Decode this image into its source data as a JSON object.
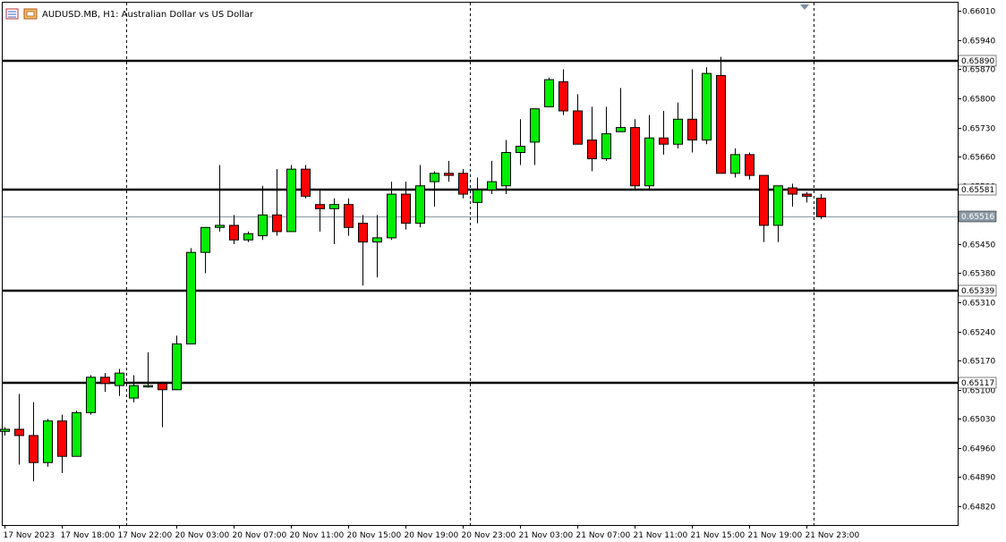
{
  "window": {
    "symbol": "AUDUSD.MB",
    "timeframe": "H1",
    "description": "Australian Dollar vs US Dollar",
    "title_text": "AUDUSD.MB, H1:  Australian Dollar vs US Dollar"
  },
  "colors": {
    "bull": "#00ee00",
    "bear": "#ff0000",
    "wick": "#000000",
    "level_line": "#000000",
    "bid_line": "#8898a8",
    "bid_tag_bg": "#8c9aa6",
    "grid_vline": "#000000",
    "background": "#ffffff"
  },
  "chart_data": {
    "type": "candlestick",
    "ylim": [
      0.64775,
      0.6603
    ],
    "y_ticks": [
      "0.66010",
      "0.65940",
      "0.65870",
      "0.65800",
      "0.65730",
      "0.65660",
      "0.65590",
      "0.65520",
      "0.65450",
      "0.65380",
      "0.65310",
      "0.65240",
      "0.65170",
      "0.65100",
      "0.65030",
      "0.64960",
      "0.64890",
      "0.64820"
    ],
    "x_labels": [
      {
        "index": 0,
        "text": "17 Nov 2023"
      },
      {
        "index": 4,
        "text": "17 Nov 18:00"
      },
      {
        "index": 8,
        "text": "17 Nov 22:00"
      },
      {
        "index": 12,
        "text": "20 Nov 03:00"
      },
      {
        "index": 16,
        "text": "20 Nov 07:00"
      },
      {
        "index": 20,
        "text": "20 Nov 11:00"
      },
      {
        "index": 24,
        "text": "20 Nov 15:00"
      },
      {
        "index": 28,
        "text": "20 Nov 19:00"
      },
      {
        "index": 32,
        "text": "20 Nov 23:00"
      },
      {
        "index": 36,
        "text": "21 Nov 03:00"
      },
      {
        "index": 40,
        "text": "21 Nov 07:00"
      },
      {
        "index": 44,
        "text": "21 Nov 11:00"
      },
      {
        "index": 48,
        "text": "21 Nov 15:00"
      },
      {
        "index": 52,
        "text": "21 Nov 19:00"
      },
      {
        "index": 56,
        "text": "21 Nov 23:00"
      }
    ],
    "period_separators": [
      8.5,
      32.5,
      56.5
    ],
    "horizontal_levels": [
      {
        "price": 0.6589,
        "label": "0.65890"
      },
      {
        "price": 0.65581,
        "label": "0.65581"
      },
      {
        "price": 0.65339,
        "label": "0.65339"
      },
      {
        "price": 0.65117,
        "label": "0.65117"
      }
    ],
    "bid": {
      "price": 0.65516,
      "label": "0.65516"
    },
    "candles": [
      {
        "o": 0.65,
        "h": 0.6501,
        "l": 0.6499,
        "c": 0.65005
      },
      {
        "o": 0.65005,
        "h": 0.6509,
        "l": 0.6492,
        "c": 0.6499
      },
      {
        "o": 0.6499,
        "h": 0.6507,
        "l": 0.6488,
        "c": 0.64925
      },
      {
        "o": 0.64925,
        "h": 0.6503,
        "l": 0.64915,
        "c": 0.65025
      },
      {
        "o": 0.65025,
        "h": 0.6504,
        "l": 0.649,
        "c": 0.6494
      },
      {
        "o": 0.6494,
        "h": 0.6505,
        "l": 0.6494,
        "c": 0.65045
      },
      {
        "o": 0.65045,
        "h": 0.65135,
        "l": 0.6504,
        "c": 0.6513
      },
      {
        "o": 0.6513,
        "h": 0.6514,
        "l": 0.65095,
        "c": 0.65115
      },
      {
        "o": 0.6511,
        "h": 0.6515,
        "l": 0.65085,
        "c": 0.6514
      },
      {
        "o": 0.6508,
        "h": 0.65135,
        "l": 0.6507,
        "c": 0.6511
      },
      {
        "o": 0.65108,
        "h": 0.6519,
        "l": 0.65105,
        "c": 0.6511
      },
      {
        "o": 0.65115,
        "h": 0.6512,
        "l": 0.6501,
        "c": 0.651
      },
      {
        "o": 0.651,
        "h": 0.6523,
        "l": 0.651,
        "c": 0.6521
      },
      {
        "o": 0.6521,
        "h": 0.6544,
        "l": 0.6521,
        "c": 0.6543
      },
      {
        "o": 0.6543,
        "h": 0.6549,
        "l": 0.6538,
        "c": 0.6549
      },
      {
        "o": 0.6549,
        "h": 0.6564,
        "l": 0.6548,
        "c": 0.65495
      },
      {
        "o": 0.65495,
        "h": 0.6552,
        "l": 0.6545,
        "c": 0.6546
      },
      {
        "o": 0.6546,
        "h": 0.6548,
        "l": 0.65455,
        "c": 0.65475
      },
      {
        "o": 0.6547,
        "h": 0.6559,
        "l": 0.6546,
        "c": 0.6552
      },
      {
        "o": 0.6552,
        "h": 0.6563,
        "l": 0.6547,
        "c": 0.6548
      },
      {
        "o": 0.6548,
        "h": 0.6564,
        "l": 0.6548,
        "c": 0.6563
      },
      {
        "o": 0.6563,
        "h": 0.6564,
        "l": 0.6556,
        "c": 0.65565
      },
      {
        "o": 0.65545,
        "h": 0.6558,
        "l": 0.6548,
        "c": 0.65535
      },
      {
        "o": 0.65535,
        "h": 0.6556,
        "l": 0.6545,
        "c": 0.65545
      },
      {
        "o": 0.65545,
        "h": 0.6556,
        "l": 0.6547,
        "c": 0.6549
      },
      {
        "o": 0.655,
        "h": 0.6552,
        "l": 0.6535,
        "c": 0.65455
      },
      {
        "o": 0.65455,
        "h": 0.6552,
        "l": 0.6537,
        "c": 0.65465
      },
      {
        "o": 0.65465,
        "h": 0.656,
        "l": 0.6546,
        "c": 0.6557
      },
      {
        "o": 0.6557,
        "h": 0.656,
        "l": 0.65485,
        "c": 0.655
      },
      {
        "o": 0.655,
        "h": 0.6564,
        "l": 0.6549,
        "c": 0.6559
      },
      {
        "o": 0.656,
        "h": 0.65625,
        "l": 0.6554,
        "c": 0.6562
      },
      {
        "o": 0.6562,
        "h": 0.6565,
        "l": 0.656,
        "c": 0.65615
      },
      {
        "o": 0.6562,
        "h": 0.6563,
        "l": 0.6556,
        "c": 0.6557
      },
      {
        "o": 0.6555,
        "h": 0.6561,
        "l": 0.655,
        "c": 0.6558
      },
      {
        "o": 0.6558,
        "h": 0.6565,
        "l": 0.6557,
        "c": 0.656
      },
      {
        "o": 0.6559,
        "h": 0.657,
        "l": 0.6557,
        "c": 0.6567
      },
      {
        "o": 0.6567,
        "h": 0.6575,
        "l": 0.6564,
        "c": 0.65685
      },
      {
        "o": 0.65695,
        "h": 0.65775,
        "l": 0.6564,
        "c": 0.65775
      },
      {
        "o": 0.6578,
        "h": 0.6585,
        "l": 0.6578,
        "c": 0.65845
      },
      {
        "o": 0.6584,
        "h": 0.6587,
        "l": 0.6576,
        "c": 0.6577
      },
      {
        "o": 0.6577,
        "h": 0.6581,
        "l": 0.6569,
        "c": 0.6569
      },
      {
        "o": 0.657,
        "h": 0.6578,
        "l": 0.65625,
        "c": 0.65655
      },
      {
        "o": 0.65655,
        "h": 0.6578,
        "l": 0.6565,
        "c": 0.65715
      },
      {
        "o": 0.6572,
        "h": 0.65825,
        "l": 0.6572,
        "c": 0.6573
      },
      {
        "o": 0.6573,
        "h": 0.6575,
        "l": 0.6558,
        "c": 0.6559
      },
      {
        "o": 0.6559,
        "h": 0.6576,
        "l": 0.6558,
        "c": 0.65705
      },
      {
        "o": 0.65705,
        "h": 0.6577,
        "l": 0.65665,
        "c": 0.6569
      },
      {
        "o": 0.6569,
        "h": 0.6579,
        "l": 0.6568,
        "c": 0.6575
      },
      {
        "o": 0.6575,
        "h": 0.6587,
        "l": 0.6567,
        "c": 0.657
      },
      {
        "o": 0.657,
        "h": 0.65875,
        "l": 0.6569,
        "c": 0.6586
      },
      {
        "o": 0.65855,
        "h": 0.659,
        "l": 0.6562,
        "c": 0.6562
      },
      {
        "o": 0.6562,
        "h": 0.6568,
        "l": 0.6561,
        "c": 0.65665
      },
      {
        "o": 0.65665,
        "h": 0.6567,
        "l": 0.65605,
        "c": 0.65615
      },
      {
        "o": 0.65615,
        "h": 0.65615,
        "l": 0.65455,
        "c": 0.65495
      },
      {
        "o": 0.65495,
        "h": 0.6559,
        "l": 0.65455,
        "c": 0.6559
      },
      {
        "o": 0.65585,
        "h": 0.65595,
        "l": 0.6554,
        "c": 0.6557
      },
      {
        "o": 0.6557,
        "h": 0.65575,
        "l": 0.6555,
        "c": 0.65565
      },
      {
        "o": 0.6556,
        "h": 0.6557,
        "l": 0.6551,
        "c": 0.65516
      }
    ]
  }
}
